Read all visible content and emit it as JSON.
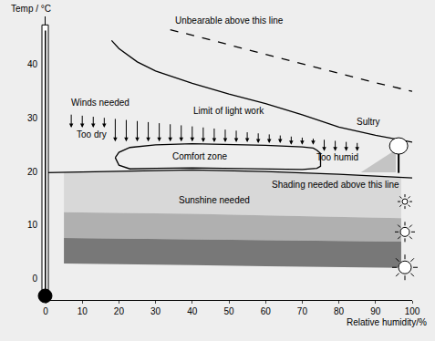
{
  "chart_data": {
    "type": "line",
    "xlabel": "Relative humidity/%",
    "ylabel": "Temp / °C",
    "xlim": [
      0,
      100
    ],
    "xticks": [
      0,
      10,
      20,
      30,
      40,
      50,
      60,
      70,
      80,
      90,
      100
    ],
    "ylim": [
      -4,
      49
    ],
    "yticks": [
      0,
      10,
      20,
      30,
      40
    ],
    "grid": false,
    "series": [
      {
        "type": "band",
        "color": "#d8d8d8",
        "x": [
          5,
          20,
          40,
          60,
          80,
          97
        ],
        "values": [
          19.9,
          20.1,
          20.3,
          20.0,
          19.5,
          19.0
        ],
        "lower": [
          12.4,
          12.3,
          12.1,
          11.8,
          11.5,
          11.3
        ]
      },
      {
        "type": "band",
        "color": "#b0b0b0",
        "x": [
          5,
          20,
          40,
          60,
          80,
          97
        ],
        "values": [
          12.4,
          12.3,
          12.1,
          11.8,
          11.5,
          11.3
        ],
        "lower": [
          7.6,
          7.5,
          7.3,
          7.2,
          7.0,
          6.9
        ]
      },
      {
        "type": "band",
        "color": "#787878",
        "x": [
          5,
          20,
          40,
          60,
          80,
          97
        ],
        "values": [
          7.6,
          7.5,
          7.3,
          7.2,
          7.0,
          6.9
        ],
        "lower": [
          2.8,
          2.7,
          2.5,
          2.3,
          2.1,
          2.0
        ]
      },
      {
        "type": "line",
        "color": "#000000",
        "line_style": "solid",
        "x": [
          0,
          20,
          40,
          60,
          80,
          100
        ],
        "values": [
          19.8,
          20.1,
          20.3,
          20.0,
          19.5,
          18.8
        ]
      },
      {
        "type": "line",
        "color": "#000000",
        "line_style": "solid",
        "x": [
          19,
          20,
          23,
          30,
          40,
          50,
          60,
          70,
          73,
          74,
          75,
          75,
          74,
          70,
          60,
          50,
          40,
          30,
          23,
          20,
          19
        ],
        "values": [
          22.6,
          23.6,
          24.5,
          25.0,
          25.2,
          25.1,
          24.9,
          24.6,
          24.4,
          24.0,
          23.4,
          21.0,
          20.6,
          20.4,
          20.5,
          20.6,
          20.7,
          20.6,
          20.5,
          21.2,
          22.6
        ]
      },
      {
        "type": "line",
        "color": "#000000",
        "line_style": "solid",
        "x": [
          18,
          20,
          25,
          30,
          40,
          50,
          60,
          70,
          80,
          90,
          100
        ],
        "values": [
          44.5,
          43.0,
          40.5,
          38.8,
          36.5,
          34.5,
          32.7,
          30.6,
          28.3,
          26.8,
          25.5
        ]
      },
      {
        "type": "line",
        "color": "#000000",
        "line_style": "dashed",
        "x": [
          34,
          40,
          50,
          60,
          70,
          80,
          90,
          100
        ],
        "values": [
          46.5,
          45.5,
          43.7,
          41.9,
          40.1,
          38.3,
          36.6,
          35.0
        ]
      }
    ],
    "wind_arrows": {
      "x": [
        7,
        10,
        13,
        16,
        19,
        22,
        25,
        28,
        31,
        34,
        37,
        40,
        43,
        46,
        49,
        52,
        55,
        58,
        61,
        64,
        67,
        70,
        73,
        76,
        79,
        82,
        85
      ],
      "from": [
        30.9,
        30.7,
        30.5,
        30.3,
        30.1,
        29.9,
        29.7,
        29.5,
        29.3,
        29.1,
        28.9,
        28.7,
        28.5,
        28.3,
        28.1,
        27.9,
        27.6,
        27.4,
        27.2,
        27.0,
        26.8,
        26.6,
        26.4,
        26.2,
        26.0,
        25.8,
        25.6
      ],
      "to": [
        28.2,
        28.2,
        28.2,
        28.2,
        25.6,
        25.6,
        25.6,
        25.6,
        25.6,
        25.6,
        25.6,
        25.6,
        25.5,
        25.5,
        25.5,
        25.5,
        25.5,
        25.3,
        25.3,
        25.3,
        25.0,
        25.0,
        25.0,
        23.8,
        23.8,
        23.8,
        23.8
      ]
    },
    "annotations": [
      {
        "text": "Unbearable above this line",
        "x": 50,
        "y": 48.2
      },
      {
        "text": "Limit of light work",
        "x": 50,
        "y": 31.4
      },
      {
        "text": "Winds needed",
        "x": 15,
        "y": 32.9
      },
      {
        "text": "Too dry",
        "x": 12.5,
        "y": 26.9
      },
      {
        "text": "Sultry",
        "x": 88,
        "y": 29.3
      },
      {
        "text": "Comfort zone",
        "x": 42,
        "y": 22.8
      },
      {
        "text": "Too humid",
        "x": 79.5,
        "y": 22.7
      },
      {
        "text": "Shading needed above this line",
        "x": 79,
        "y": 17.5
      },
      {
        "text": "Sunshine needed",
        "x": 46,
        "y": 14.6
      }
    ]
  }
}
